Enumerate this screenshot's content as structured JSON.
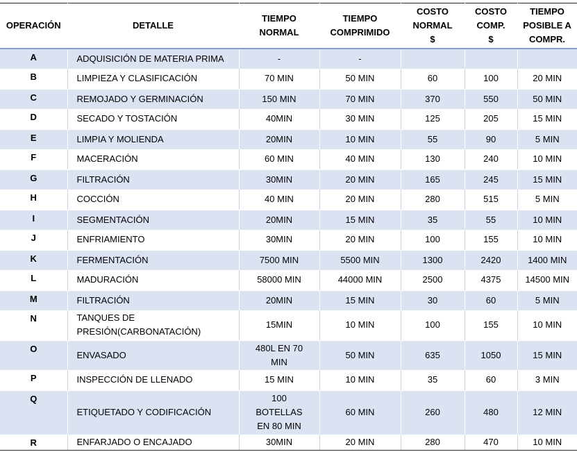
{
  "headers": [
    [
      "OPERACIÓN"
    ],
    [
      "DETALLE"
    ],
    [
      "TIEMPO",
      "NORMAL"
    ],
    [
      "TIEMPO",
      "COMPRIMIDO"
    ],
    [
      "COSTO",
      "NORMAL",
      "$"
    ],
    [
      "COSTO",
      "COMP.",
      "$"
    ],
    [
      "TIEMPO",
      "POSIBLE A",
      "COMPR."
    ]
  ],
  "rows": [
    {
      "op": "A",
      "detalle": [
        "ADQUISICIÓN DE MATERIA PRIMA"
      ],
      "tn": [
        "-"
      ],
      "tc": "-",
      "cn": "",
      "cc": "",
      "tp": ""
    },
    {
      "op": "B",
      "detalle": [
        "LIMPIEZA Y CLASIFICACIÓN"
      ],
      "tn": [
        "70 MIN"
      ],
      "tc": "50 MIN",
      "cn": "60",
      "cc": "100",
      "tp": "20 MIN"
    },
    {
      "op": "C",
      "detalle": [
        "REMOJADO Y GERMINACIÓN"
      ],
      "tn": [
        "150 MIN"
      ],
      "tc": "70 MIN",
      "cn": "370",
      "cc": "550",
      "tp": "50 MIN"
    },
    {
      "op": "D",
      "detalle": [
        "SECADO Y TOSTACIÓN"
      ],
      "tn": [
        "40MIN"
      ],
      "tc": "30 MIN",
      "cn": "125",
      "cc": "205",
      "tp": "15 MIN"
    },
    {
      "op": "E",
      "detalle": [
        "LIMPIA Y MOLIENDA"
      ],
      "tn": [
        "20MIN"
      ],
      "tc": "10 MIN",
      "cn": "55",
      "cc": "90",
      "tp": "5 MIN"
    },
    {
      "op": "F",
      "detalle": [
        "MACERACIÓN"
      ],
      "tn": [
        "60 MIN"
      ],
      "tc": "40 MIN",
      "cn": "130",
      "cc": "240",
      "tp": "10 MIN"
    },
    {
      "op": "G",
      "detalle": [
        "FILTRACIÓN"
      ],
      "tn": [
        "30MIN"
      ],
      "tc": "20 MIN",
      "cn": "165",
      "cc": "245",
      "tp": "15 MIN"
    },
    {
      "op": "H",
      "detalle": [
        "COCCIÓN"
      ],
      "tn": [
        "40 MIN"
      ],
      "tc": "20 MIN",
      "cn": "280",
      "cc": "515",
      "tp": "5 MIN"
    },
    {
      "op": "I",
      "detalle": [
        "SEGMENTACIÓN"
      ],
      "tn": [
        "20MIN"
      ],
      "tc": "15 MIN",
      "cn": "35",
      "cc": "55",
      "tp": "10 MIN"
    },
    {
      "op": "J",
      "detalle": [
        "ENFRIAMIENTO"
      ],
      "tn": [
        "30MIN"
      ],
      "tc": "20 MIN",
      "cn": "100",
      "cc": "155",
      "tp": "10 MIN"
    },
    {
      "op": "K",
      "detalle": [
        "FERMENTACIÓN"
      ],
      "tn": [
        "7500 MIN"
      ],
      "tc": "5500 MIN",
      "cn": "1300",
      "cc": "2420",
      "tp": "1400 MIN"
    },
    {
      "op": "L",
      "detalle": [
        "MADURACIÓN"
      ],
      "tn": [
        "58000 MIN"
      ],
      "tc": "44000 MIN",
      "cn": "2500",
      "cc": "4375",
      "tp": "14500 MIN"
    },
    {
      "op": "M",
      "detalle": [
        "FILTRACIÓN"
      ],
      "tn": [
        "20MIN"
      ],
      "tc": "15 MIN",
      "cn": "30",
      "cc": "60",
      "tp": "5 MIN"
    },
    {
      "op": "N",
      "detalle": [
        "TANQUES DE",
        "PRESIÓN(CARBONATACIÓN)"
      ],
      "tn": [
        "15MIN"
      ],
      "tc": "10 MIN",
      "cn": "100",
      "cc": "155",
      "tp": "10 MIN"
    },
    {
      "op": "O",
      "detalle": [
        "ENVASADO"
      ],
      "tn": [
        "480L EN 70",
        "MIN"
      ],
      "tc": "50 MIN",
      "cn": "635",
      "cc": "1050",
      "tp": "15 MIN"
    },
    {
      "op": "P",
      "detalle": [
        "INSPECCIÓN DE LLENADO"
      ],
      "tn": [
        "15 MIN"
      ],
      "tc": "10 MIN",
      "cn": "35",
      "cc": "60",
      "tp": "3 MIN"
    },
    {
      "op": "Q",
      "detalle": [
        "ETIQUETADO Y CODIFICACIÓN"
      ],
      "tn": [
        "100",
        "BOTELLAS",
        "EN 80 MIN"
      ],
      "tc": "60 MIN",
      "cn": "260",
      "cc": "480",
      "tp": "12 MIN"
    },
    {
      "op": "R",
      "detalle": [
        "ENFARJADO O ENCAJADO"
      ],
      "tn": [
        "30MIN"
      ],
      "tc": "20 MIN",
      "cn": "280",
      "cc": "470",
      "tp": "10 MIN"
    }
  ]
}
